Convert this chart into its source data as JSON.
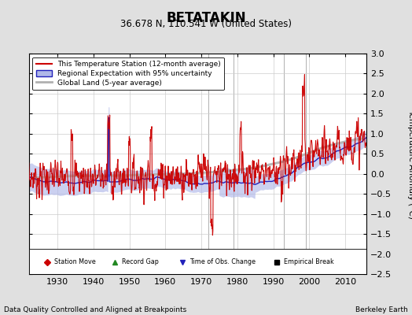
{
  "title": "BETATAKIN",
  "subtitle": "36.678 N, 110.541 W (United States)",
  "ylabel": "Temperature Anomaly (°C)",
  "xlabel_left": "Data Quality Controlled and Aligned at Breakpoints",
  "xlabel_right": "Berkeley Earth",
  "xlim": [
    1922,
    2016
  ],
  "ylim": [
    -2.5,
    3.0
  ],
  "yticks": [
    -2.5,
    -2,
    -1.5,
    -1,
    -0.5,
    0,
    0.5,
    1,
    1.5,
    2,
    2.5,
    3
  ],
  "xticks": [
    1930,
    1940,
    1950,
    1960,
    1970,
    1980,
    1990,
    2000,
    2010
  ],
  "bg_color": "#e0e0e0",
  "plot_bg_color": "#ffffff",
  "grid_color": "#cccccc",
  "station_move_years": [
    1999
  ],
  "empirical_break_years": [
    1979,
    1993
  ],
  "obs_change_years": [
    1972
  ],
  "vertical_lines": [
    1972,
    1979,
    1993,
    1999
  ],
  "red_color": "#cc0000",
  "blue_color": "#2222bb",
  "blue_fill_color": "#b0b8e8",
  "gray_color": "#b0b0b0",
  "legend_box_color": "#ffffff",
  "global_smooth_x": [
    1922,
    1935,
    1945,
    1955,
    1965,
    1975,
    1985,
    1995,
    2005,
    2015
  ],
  "global_smooth_y": [
    -0.1,
    -0.05,
    -0.05,
    -0.02,
    0.0,
    0.05,
    0.15,
    0.35,
    0.7,
    0.9
  ]
}
